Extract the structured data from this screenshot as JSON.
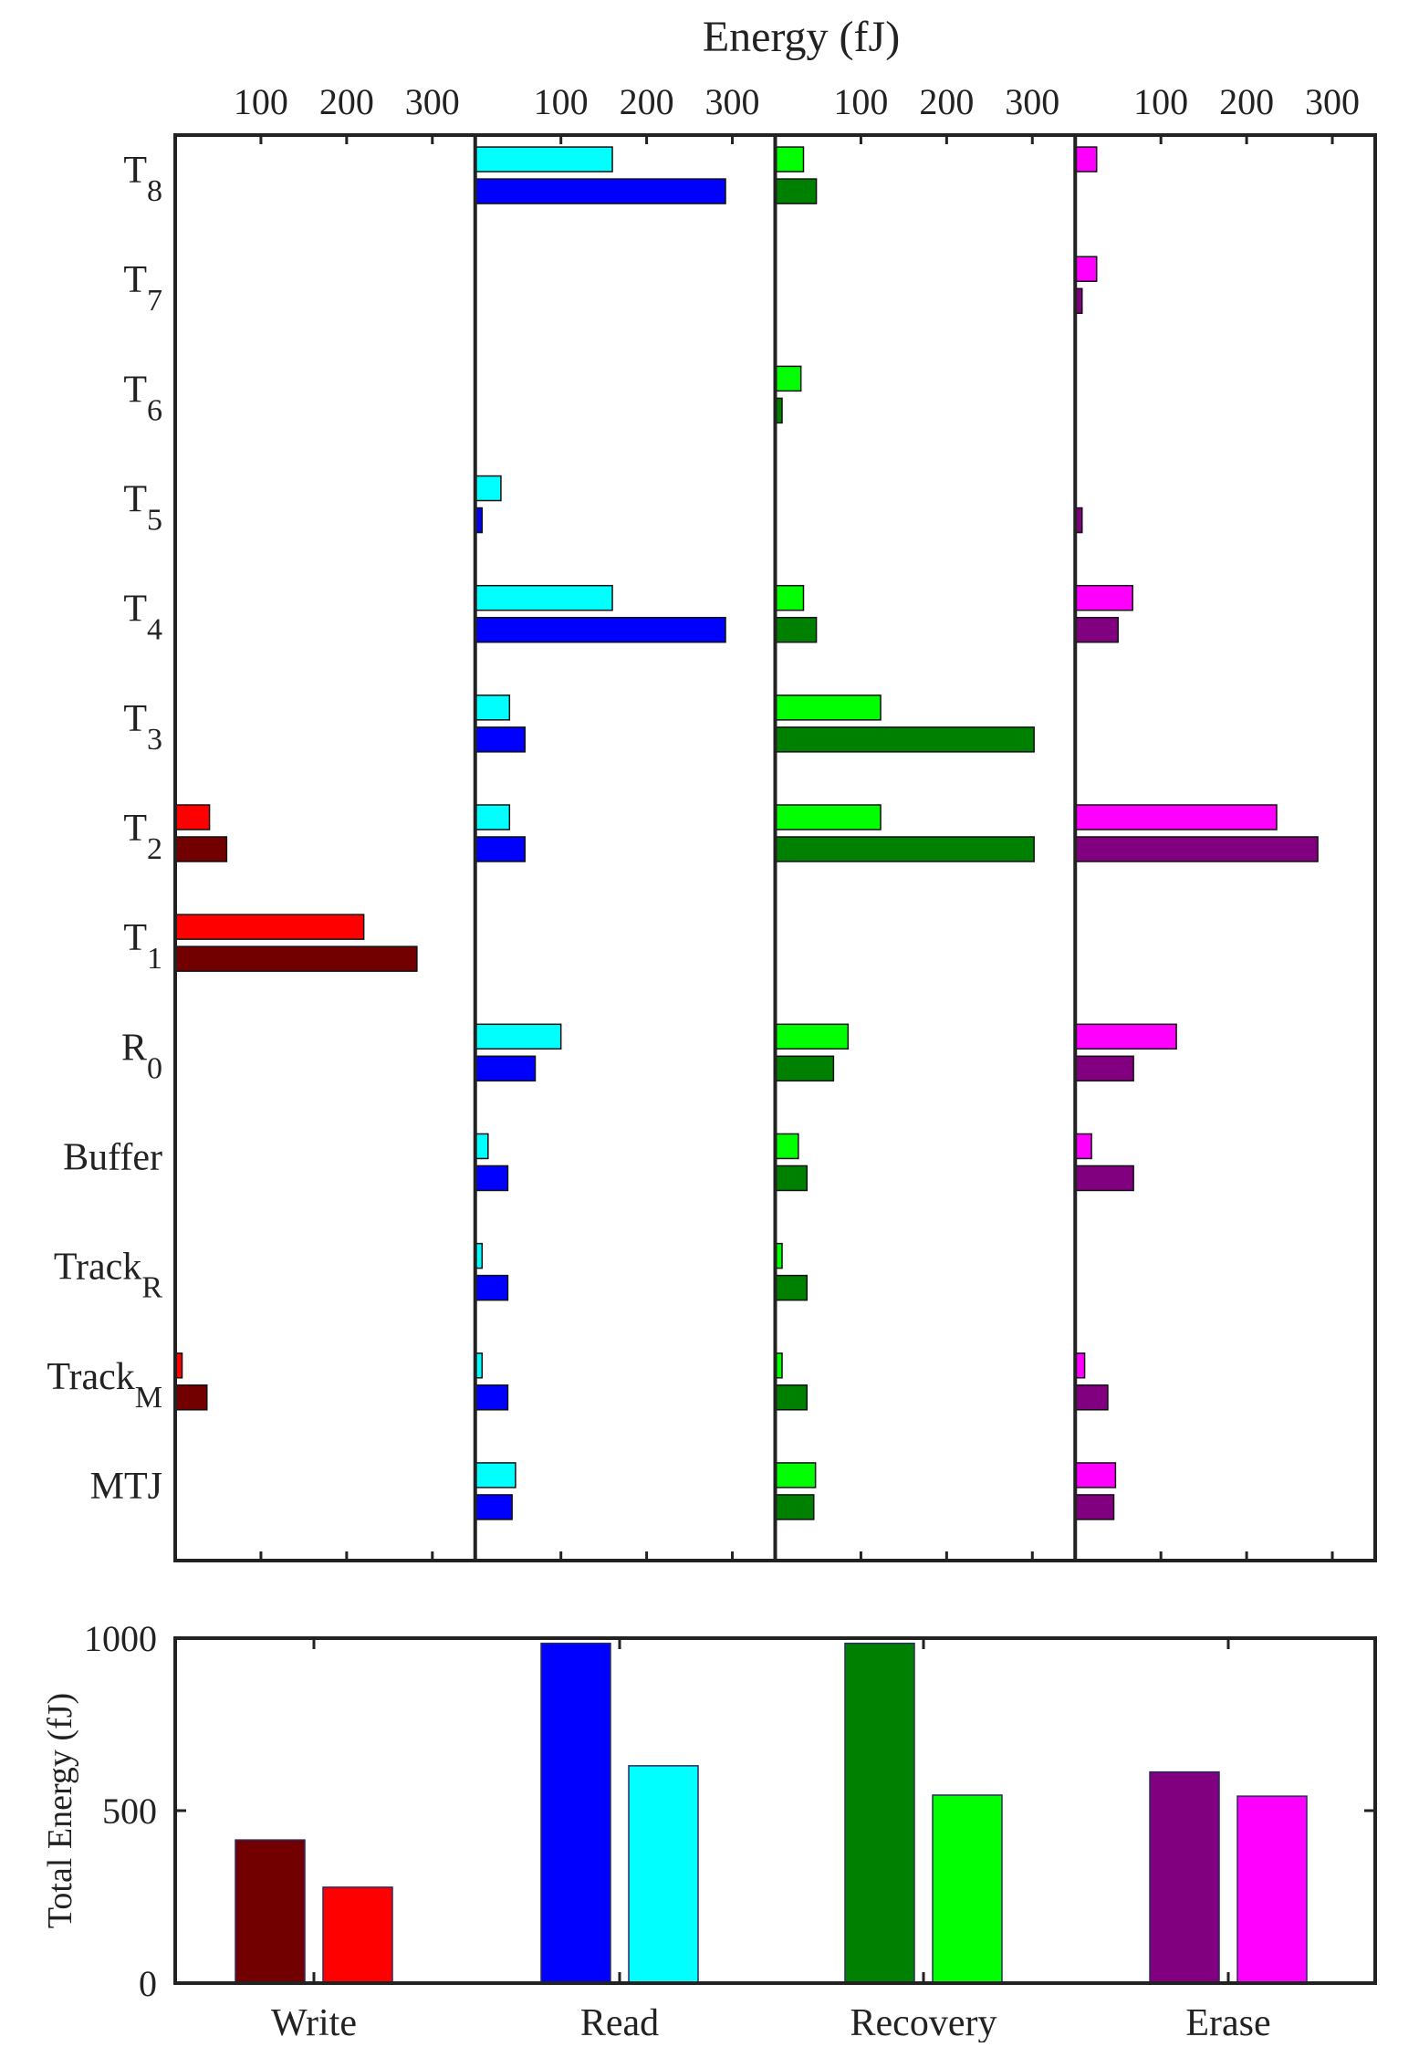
{
  "chart_data": [
    {
      "type": "bar",
      "orientation": "horizontal",
      "title": "Energy (fJ)",
      "xticks": [
        100,
        200,
        300
      ],
      "xlim": [
        0,
        350
      ],
      "categories": [
        "T8",
        "T7",
        "T6",
        "T5",
        "T4",
        "T3",
        "T2",
        "T1",
        "R0",
        "Buffer",
        "TrackR",
        "TrackM",
        "MTJ"
      ],
      "category_labels": [
        {
          "main": "T",
          "sub": "8"
        },
        {
          "main": "T",
          "sub": "7"
        },
        {
          "main": "T",
          "sub": "6"
        },
        {
          "main": "T",
          "sub": "5"
        },
        {
          "main": "T",
          "sub": "4"
        },
        {
          "main": "T",
          "sub": "3"
        },
        {
          "main": "T",
          "sub": "2"
        },
        {
          "main": "T",
          "sub": "1"
        },
        {
          "main": "R",
          "sub": "0"
        },
        {
          "main": "Buffer",
          "sub": ""
        },
        {
          "main": "Track",
          "sub": "R"
        },
        {
          "main": "Track",
          "sub": "M"
        },
        {
          "main": "MTJ",
          "sub": ""
        }
      ],
      "panels": [
        {
          "name": "Write",
          "series": [
            {
              "color": "#ff0000",
              "values": [
                0,
                0,
                0,
                0,
                0,
                0,
                40,
                220,
                0,
                0,
                0,
                8,
                0
              ]
            },
            {
              "color": "#730000",
              "values": [
                0,
                0,
                0,
                0,
                0,
                0,
                60,
                282,
                0,
                0,
                0,
                37,
                0
              ]
            }
          ]
        },
        {
          "name": "Read",
          "series": [
            {
              "color": "#00ffff",
              "values": [
                160,
                0,
                0,
                30,
                160,
                40,
                40,
                0,
                100,
                15,
                8,
                8,
                47
              ]
            },
            {
              "color": "#0000ff",
              "values": [
                292,
                0,
                0,
                8,
                292,
                58,
                58,
                0,
                70,
                38,
                38,
                38,
                43
              ]
            }
          ]
        },
        {
          "name": "Recovery",
          "series": [
            {
              "color": "#00ff00",
              "values": [
                33,
                0,
                30,
                0,
                33,
                123,
                123,
                0,
                85,
                27,
                8,
                8,
                47
              ]
            },
            {
              "color": "#008000",
              "values": [
                48,
                0,
                8,
                0,
                48,
                302,
                302,
                0,
                68,
                37,
                37,
                37,
                45
              ]
            }
          ]
        },
        {
          "name": "Erase",
          "series": [
            {
              "color": "#ff00ff",
              "values": [
                25,
                25,
                0,
                0,
                67,
                0,
                235,
                0,
                118,
                19,
                0,
                11,
                47
              ]
            },
            {
              "color": "#800080",
              "values": [
                0,
                8,
                0,
                8,
                50,
                0,
                283,
                0,
                68,
                68,
                0,
                38,
                45
              ]
            }
          ]
        }
      ]
    },
    {
      "type": "bar",
      "ylabel": "Total Energy (fJ)",
      "categories": [
        "Write",
        "Read",
        "Recovery",
        "Erase"
      ],
      "ylim": [
        0,
        1000
      ],
      "yticks": [
        0,
        500,
        1000
      ],
      "bars": [
        {
          "category": "Write",
          "color": "#730000",
          "value": 415
        },
        {
          "category": "Write",
          "color": "#ff0000",
          "value": 278
        },
        {
          "category": "Read",
          "color": "#0000ff",
          "value": 985
        },
        {
          "category": "Read",
          "color": "#00ffff",
          "value": 630
        },
        {
          "category": "Recovery",
          "color": "#008000",
          "value": 985
        },
        {
          "category": "Recovery",
          "color": "#00ff00",
          "value": 545
        },
        {
          "category": "Erase",
          "color": "#800080",
          "value": 612
        },
        {
          "category": "Erase",
          "color": "#ff00ff",
          "value": 542
        }
      ]
    }
  ]
}
